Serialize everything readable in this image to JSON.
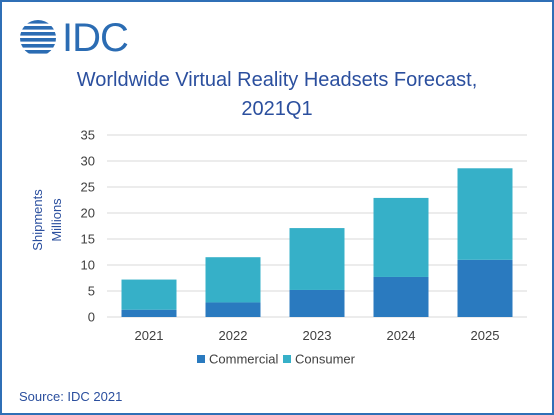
{
  "logo": {
    "text": "IDC"
  },
  "source": "Source: IDC 2021",
  "chart_data": {
    "type": "bar",
    "stacked": true,
    "title_line1": "Worldwide Virtual Reality Headsets Forecast,",
    "title_line2": "2021Q1",
    "ylabel_line1": "Shipments",
    "ylabel_line2": "Millions",
    "xlabel": "",
    "ylim": [
      0,
      35
    ],
    "yticks": [
      0,
      5,
      10,
      15,
      20,
      25,
      30,
      35
    ],
    "grid": true,
    "legend_position": "bottom",
    "categories": [
      "2021",
      "2022",
      "2023",
      "2024",
      "2025"
    ],
    "series": [
      {
        "name": "Commercial",
        "color": "#2a7abf",
        "values": [
          1.4,
          2.8,
          5.2,
          7.7,
          11.0
        ]
      },
      {
        "name": "Consumer",
        "color": "#36b0c8",
        "values": [
          5.8,
          8.7,
          11.9,
          15.2,
          17.6
        ]
      }
    ],
    "colors": {
      "grid": "#d9d9d9",
      "axis_text": "#404040",
      "label_text": "#2b4f9e"
    }
  }
}
